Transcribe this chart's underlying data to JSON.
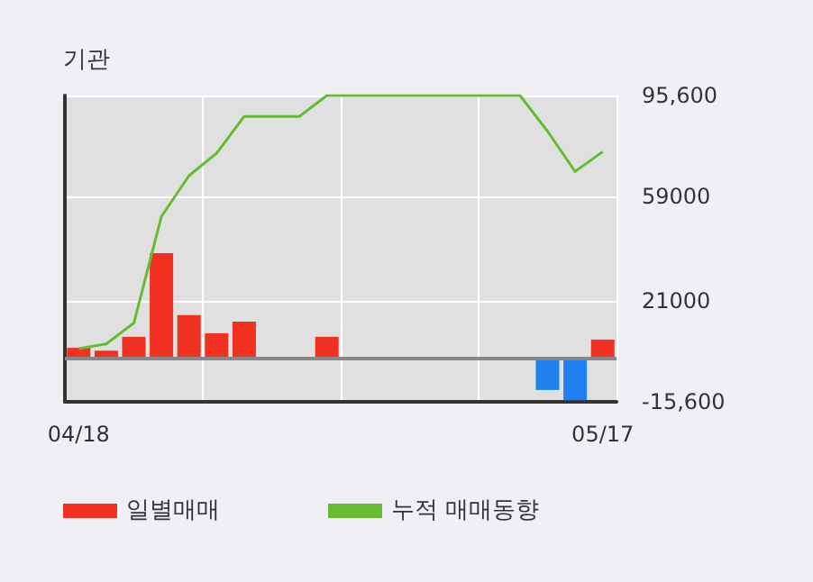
{
  "chart_data": {
    "type": "bar",
    "title": "기관",
    "categories": [
      "04/18",
      null,
      null,
      null,
      null,
      null,
      null,
      null,
      null,
      null,
      null,
      null,
      null,
      null,
      null,
      null,
      null,
      null,
      null,
      "05/17"
    ],
    "series": [
      {
        "name": "일별매매",
        "color": "#f03020",
        "colors": [
          "#f03020",
          "#f03020",
          "#f03020",
          "#f03020",
          "#f03020",
          "#f03020",
          "#f03020",
          "#f03020",
          "#f03020",
          "#f03020",
          "#f03020",
          "#f03020",
          "#f03020",
          "#f03020",
          "#f03020",
          "#f03020",
          "#f03020",
          "#2080f0",
          "#2080f0",
          "#f03020"
        ],
        "values": [
          4000,
          3000,
          8000,
          38400,
          15900,
          9300,
          13500,
          0,
          0,
          8000,
          0,
          0,
          0,
          0,
          0,
          0,
          0,
          -11300,
          -15000,
          7000
        ]
      },
      {
        "name": "누적 매매동향",
        "type": "line",
        "color": "#66bb33",
        "values": [
          3700,
          5400,
          13000,
          51700,
          66500,
          74600,
          88000,
          88000,
          88000,
          95600,
          95600,
          95600,
          95600,
          95600,
          95600,
          95600,
          95600,
          82600,
          68000,
          75200
        ]
      }
    ],
    "ylim": [
      -15600,
      95600
    ],
    "yticks": [
      {
        "value": -15600,
        "label": "-15,600"
      },
      21000,
      59000,
      {
        "value": 95600,
        "label": "95,600"
      }
    ],
    "grid": true,
    "legend": "bottom",
    "marker": "none",
    "line_style": "solid"
  }
}
